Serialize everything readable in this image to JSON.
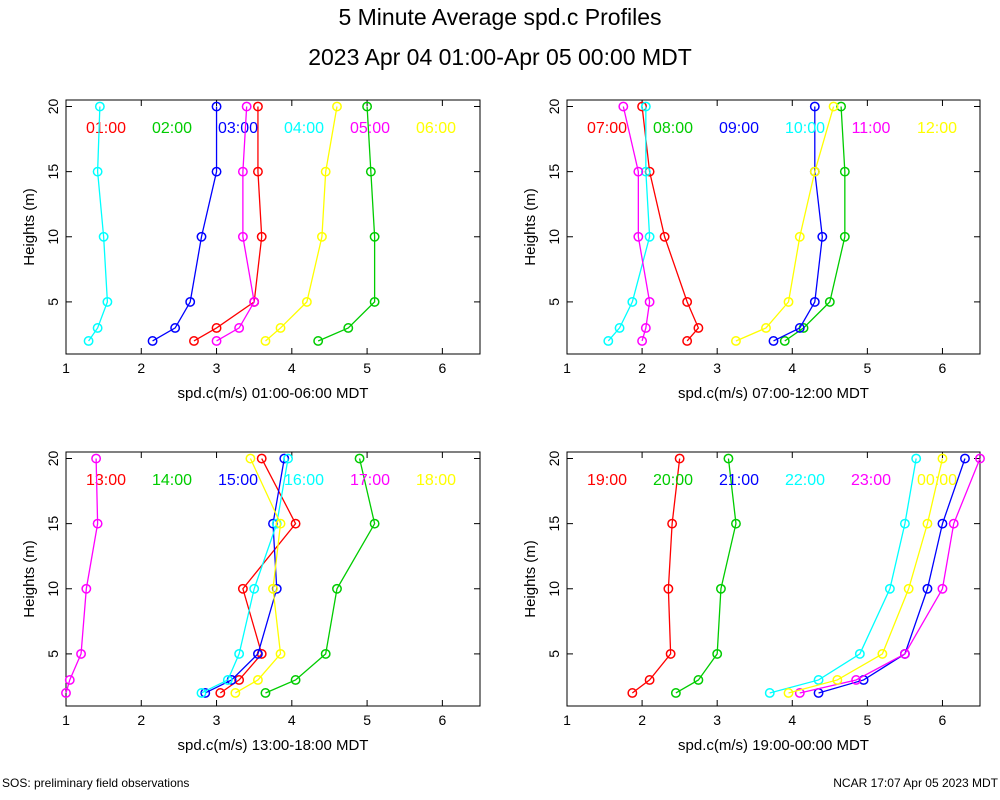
{
  "title": "5 Minute Average spd.c Profiles",
  "subtitle": "2023 Apr 04 01:00-Apr 05 00:00 MDT",
  "footer_left": "SOS: preliminary field observations",
  "footer_right": "NCAR 17:07 Apr 05 2023 MDT",
  "chart_data": [
    {
      "type": "line",
      "xlabel": "spd.c(m/s) 01:00-06:00 MDT",
      "ylabel": "Heights (m)",
      "xlim": [
        1,
        6.5
      ],
      "ylim": [
        1,
        20.5
      ],
      "xticks": [
        1,
        2,
        3,
        4,
        5,
        6
      ],
      "yticks": [
        5,
        10,
        15,
        20
      ],
      "heights": [
        2,
        3,
        5,
        10,
        15,
        20
      ],
      "series": [
        {
          "name": "01:00",
          "color": "#ff0000",
          "values": [
            2.7,
            3.0,
            3.5,
            3.6,
            3.55,
            3.55
          ]
        },
        {
          "name": "02:00",
          "color": "#00cc00",
          "values": [
            4.35,
            4.75,
            5.1,
            5.1,
            5.05,
            5.0
          ]
        },
        {
          "name": "03:00",
          "color": "#0000ff",
          "values": [
            2.15,
            2.45,
            2.65,
            2.8,
            3.0,
            3.0
          ]
        },
        {
          "name": "04:00",
          "color": "#00ffff",
          "values": [
            1.3,
            1.42,
            1.55,
            1.5,
            1.42,
            1.45
          ]
        },
        {
          "name": "05:00",
          "color": "#ff00ff",
          "values": [
            3.0,
            3.3,
            3.5,
            3.35,
            3.35,
            3.4
          ]
        },
        {
          "name": "06:00",
          "color": "#ffff00",
          "values": [
            3.65,
            3.85,
            4.2,
            4.4,
            4.45,
            4.6
          ]
        }
      ]
    },
    {
      "type": "line",
      "xlabel": "spd.c(m/s) 07:00-12:00 MDT",
      "ylabel": "Heights (m)",
      "xlim": [
        1,
        6.5
      ],
      "ylim": [
        1,
        20.5
      ],
      "xticks": [
        1,
        2,
        3,
        4,
        5,
        6
      ],
      "yticks": [
        5,
        10,
        15,
        20
      ],
      "heights": [
        2,
        3,
        5,
        10,
        15,
        20
      ],
      "series": [
        {
          "name": "07:00",
          "color": "#ff0000",
          "values": [
            2.6,
            2.75,
            2.6,
            2.3,
            2.1,
            2.0
          ]
        },
        {
          "name": "08:00",
          "color": "#00cc00",
          "values": [
            3.9,
            4.15,
            4.5,
            4.7,
            4.7,
            4.65
          ]
        },
        {
          "name": "09:00",
          "color": "#0000ff",
          "values": [
            3.75,
            4.1,
            4.3,
            4.4,
            4.3,
            4.3
          ]
        },
        {
          "name": "10:00",
          "color": "#00ffff",
          "values": [
            1.55,
            1.7,
            1.87,
            2.1,
            2.05,
            2.05
          ]
        },
        {
          "name": "11:00",
          "color": "#ff00ff",
          "values": [
            2.0,
            2.05,
            2.1,
            1.95,
            1.95,
            1.75
          ]
        },
        {
          "name": "12:00",
          "color": "#ffff00",
          "values": [
            3.25,
            3.65,
            3.95,
            4.1,
            4.3,
            4.55
          ]
        }
      ]
    },
    {
      "type": "line",
      "xlabel": "spd.c(m/s) 13:00-18:00 MDT",
      "ylabel": "Heights (m)",
      "xlim": [
        1,
        6.5
      ],
      "ylim": [
        1,
        20.5
      ],
      "xticks": [
        1,
        2,
        3,
        4,
        5,
        6
      ],
      "yticks": [
        5,
        10,
        15,
        20
      ],
      "heights": [
        2,
        3,
        5,
        10,
        15,
        20
      ],
      "series": [
        {
          "name": "13:00",
          "color": "#ff0000",
          "values": [
            3.05,
            3.3,
            3.6,
            3.35,
            4.05,
            3.6
          ]
        },
        {
          "name": "14:00",
          "color": "#00cc00",
          "values": [
            3.65,
            4.05,
            4.45,
            4.6,
            5.1,
            4.9
          ]
        },
        {
          "name": "15:00",
          "color": "#0000ff",
          "values": [
            2.85,
            3.2,
            3.55,
            3.8,
            3.75,
            3.9
          ]
        },
        {
          "name": "16:00",
          "color": "#00ffff",
          "values": [
            2.8,
            3.15,
            3.3,
            3.5,
            3.8,
            3.95
          ]
        },
        {
          "name": "17:00",
          "color": "#ff00ff",
          "values": [
            1.0,
            1.05,
            1.2,
            1.27,
            1.42,
            1.4
          ]
        },
        {
          "name": "18:00",
          "color": "#ffff00",
          "values": [
            3.25,
            3.55,
            3.85,
            3.75,
            3.85,
            3.45
          ]
        }
      ]
    },
    {
      "type": "line",
      "xlabel": "spd.c(m/s) 19:00-00:00 MDT",
      "ylabel": "Heights (m)",
      "xlim": [
        1,
        6.5
      ],
      "ylim": [
        1,
        20.5
      ],
      "xticks": [
        1,
        2,
        3,
        4,
        5,
        6
      ],
      "yticks": [
        5,
        10,
        15,
        20
      ],
      "heights": [
        2,
        3,
        5,
        10,
        15,
        20
      ],
      "series": [
        {
          "name": "19:00",
          "color": "#ff0000",
          "values": [
            1.87,
            2.1,
            2.38,
            2.35,
            2.4,
            2.5
          ]
        },
        {
          "name": "20:00",
          "color": "#00cc00",
          "values": [
            2.45,
            2.75,
            3.0,
            3.05,
            3.25,
            3.15
          ]
        },
        {
          "name": "21:00",
          "color": "#0000ff",
          "values": [
            4.35,
            4.95,
            5.5,
            5.8,
            6.0,
            6.3
          ]
        },
        {
          "name": "22:00",
          "color": "#00ffff",
          "values": [
            3.7,
            4.35,
            4.9,
            5.3,
            5.5,
            5.65
          ]
        },
        {
          "name": "23:00",
          "color": "#ff00ff",
          "values": [
            4.1,
            4.85,
            5.5,
            6.0,
            6.15,
            6.5
          ]
        },
        {
          "name": "00:00",
          "color": "#ffff00",
          "values": [
            3.95,
            4.6,
            5.2,
            5.55,
            5.8,
            6.0
          ]
        }
      ]
    }
  ]
}
